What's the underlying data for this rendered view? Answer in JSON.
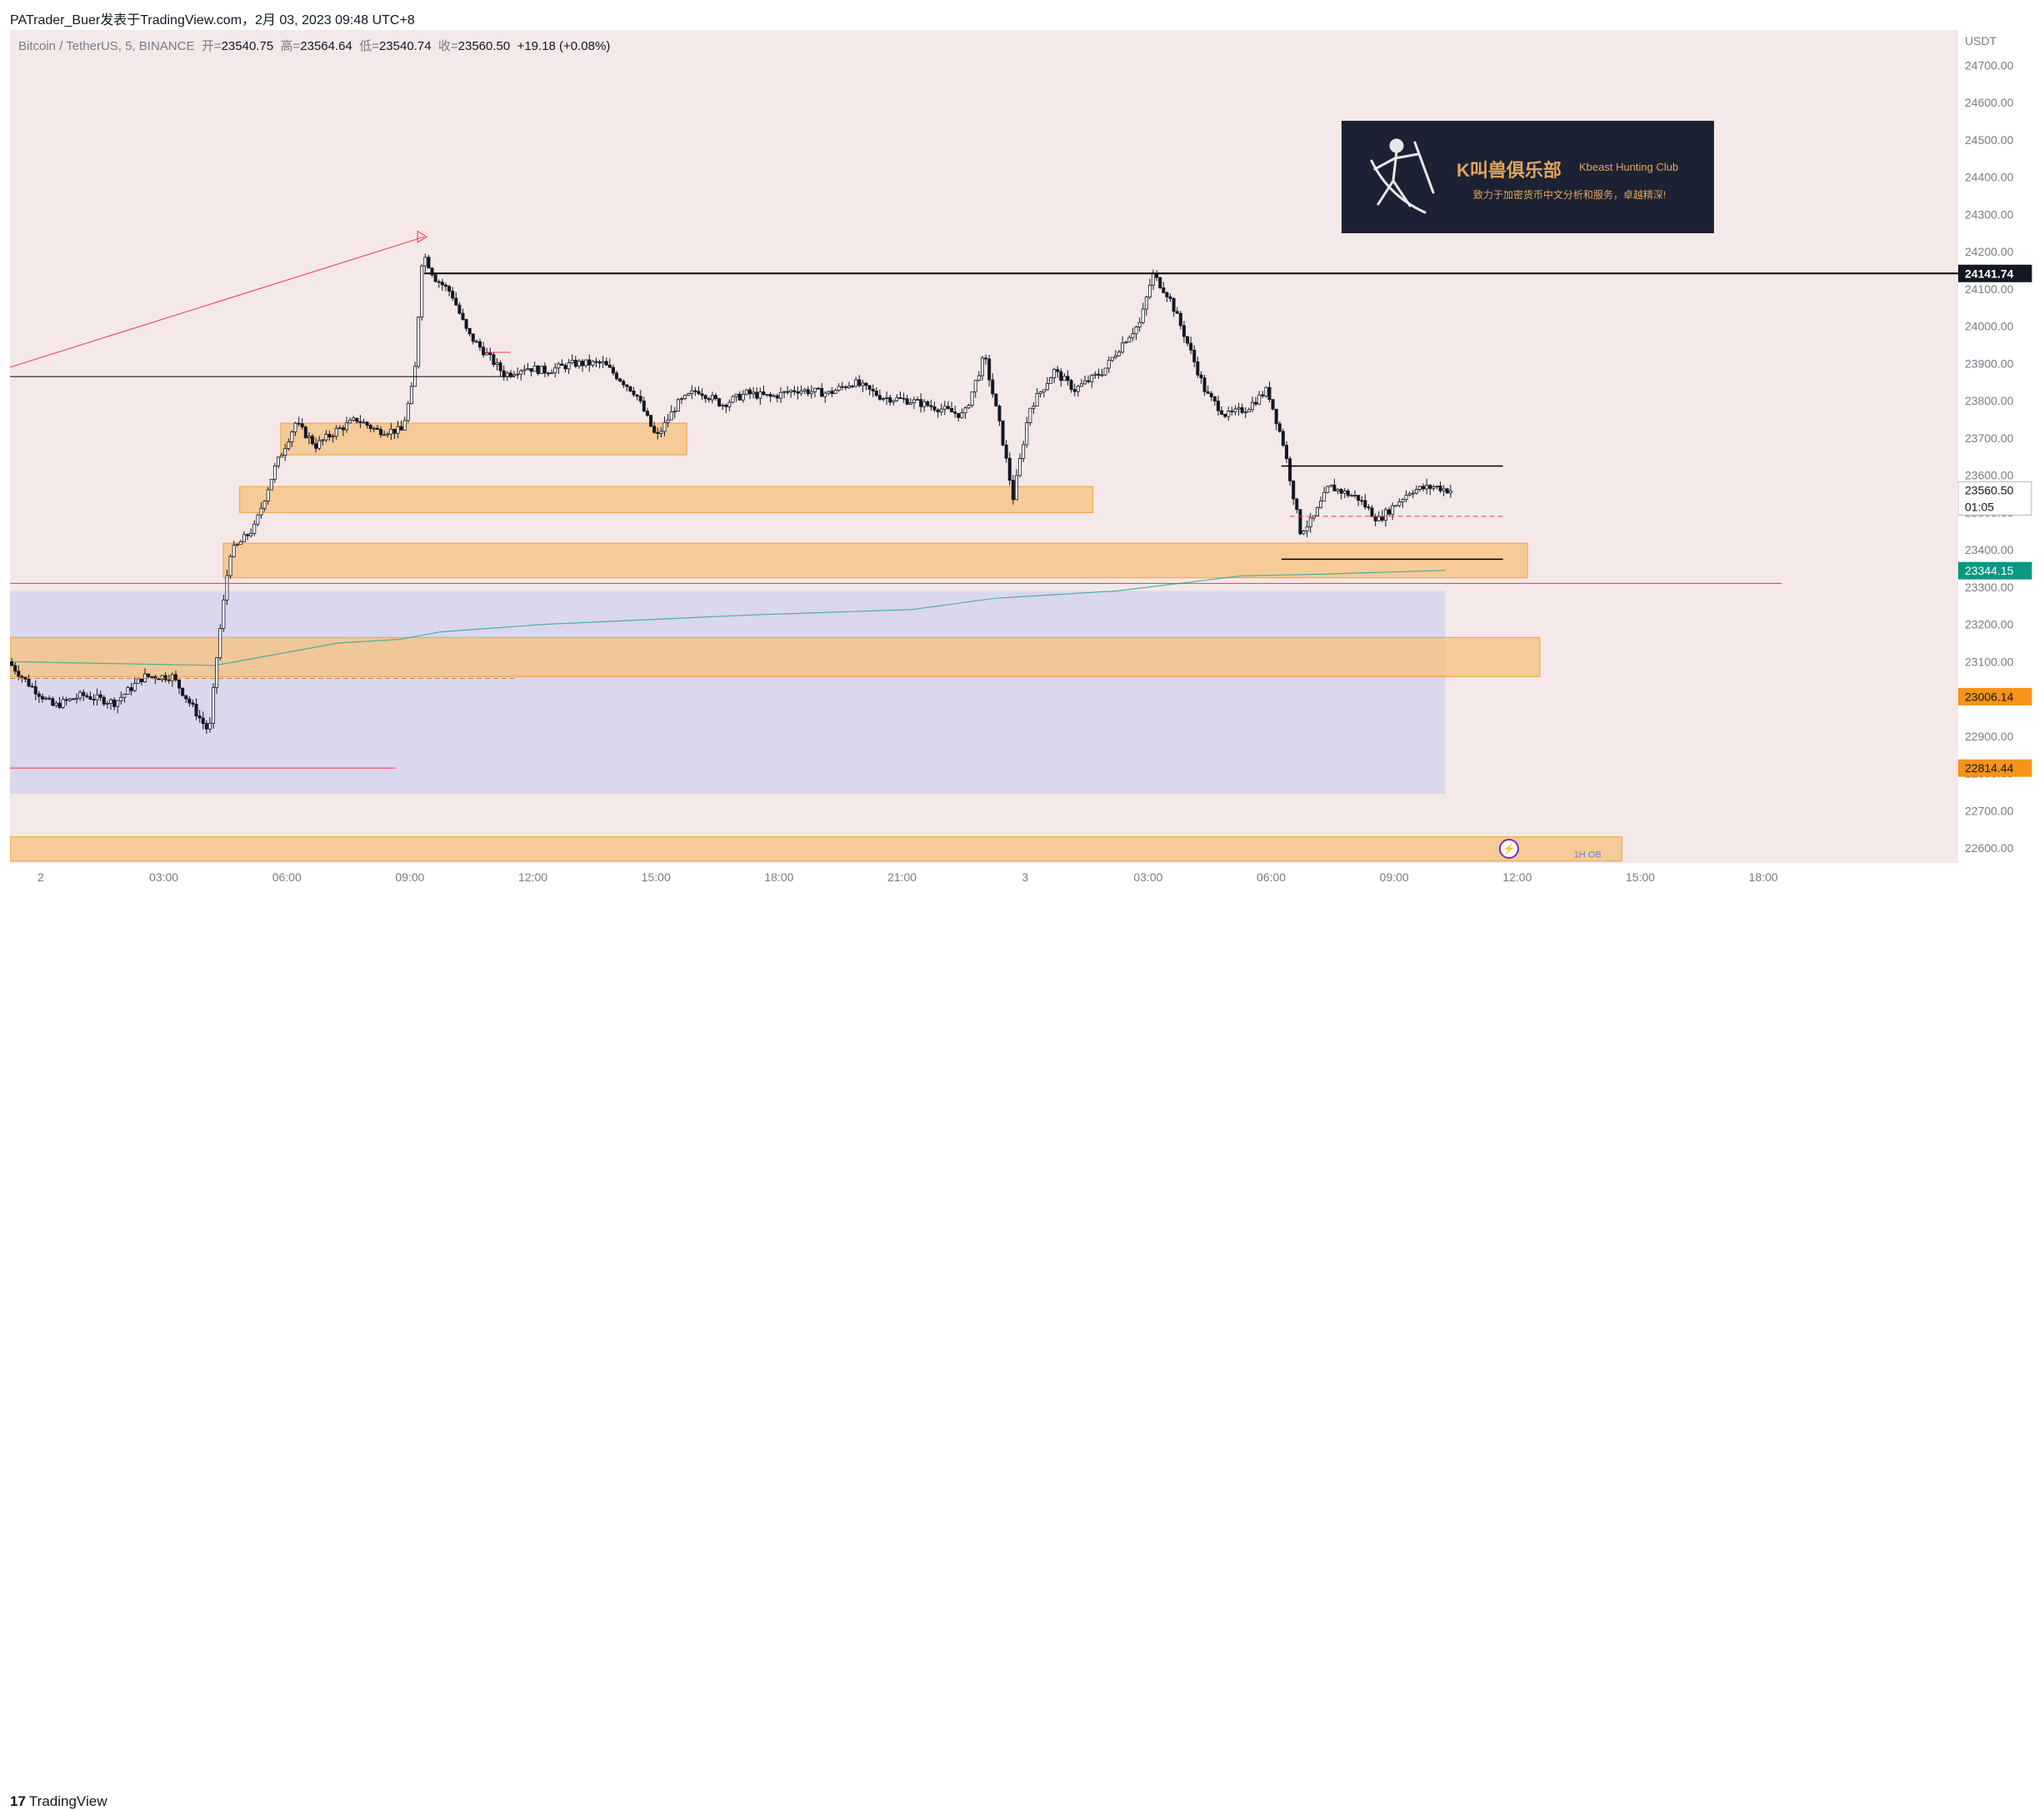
{
  "header": {
    "publisher_line": "PATrader_Buer发表于TradingView.com，2月 03, 2023 09:48 UTC+8"
  },
  "legend": {
    "symbol": "Bitcoin / TetherUS, 5, BINANCE",
    "open_label": "开=",
    "open": "23540.75",
    "high_label": "高=",
    "high": "23564.64",
    "low_label": "低=",
    "low": "23540.74",
    "close_label": "收=",
    "close": "23560.50",
    "change": "+19.18 (+0.08%)"
  },
  "banner": {
    "title": "K叫兽俱乐部",
    "subtitle": "Kbeast Hunting Club",
    "tagline": "致力于加密货币中文分析和服务，卓越精深!"
  },
  "footer": {
    "brand": "TradingView",
    "brand_mark": "17"
  },
  "colors": {
    "background": "#f4e8e9",
    "zone_orange": "#f7c27c",
    "zone_purple": "#d6d3ec",
    "resistance": "#000000",
    "support_red": "#f23645",
    "price_tag_green": "#089981",
    "price_tag_orange": "#f7931a",
    "vwap": "#26a69a"
  },
  "flash_icon": "lightning-icon",
  "chart_data": {
    "type": "candlestick",
    "symbol": "Bitcoin / TetherUS",
    "interval": "5",
    "exchange": "BINANCE",
    "y_unit": "USDT",
    "ylim": [
      22560,
      24795
    ],
    "y_ticks": [
      22600,
      22700,
      22800,
      22900,
      23000,
      23100,
      23200,
      23300,
      23400,
      23500,
      23600,
      23700,
      23800,
      23900,
      24000,
      24100,
      24200,
      24300,
      24400,
      24500,
      24600,
      24700
    ],
    "y_tick_labels": [
      "22600.00",
      "22700.00",
      "22800.00",
      "22900.00",
      "23000.00",
      "23100.00",
      "23200.00",
      "23300.00",
      "23400.00",
      "23500.00",
      "23600.00",
      "23700.00",
      "23800.00",
      "23900.00",
      "24000.00",
      "24100.00",
      "24200.00",
      "24300.00",
      "24400.00",
      "24500.00",
      "24600.00",
      "24700.00"
    ],
    "x_range_hours": [
      0,
      48
    ],
    "x_ticks": [
      {
        "label": "2",
        "h": 0.75
      },
      {
        "label": "03:00",
        "h": 3.75
      },
      {
        "label": "06:00",
        "h": 6.75
      },
      {
        "label": "09:00",
        "h": 9.75
      },
      {
        "label": "12:00",
        "h": 12.75
      },
      {
        "label": "15:00",
        "h": 15.75
      },
      {
        "label": "18:00",
        "h": 18.75
      },
      {
        "label": "21:00",
        "h": 21.75
      },
      {
        "label": "3",
        "h": 24.75
      },
      {
        "label": "03:00",
        "h": 27.75
      },
      {
        "label": "06:00",
        "h": 30.75
      },
      {
        "label": "09:00",
        "h": 33.75
      },
      {
        "label": "12:00",
        "h": 36.75
      },
      {
        "label": "15:00",
        "h": 39.75
      },
      {
        "label": "18:00",
        "h": 42.75
      }
    ],
    "price_path": [
      [
        0.0,
        23100
      ],
      [
        0.5,
        23040
      ],
      [
        1.1,
        22980
      ],
      [
        1.8,
        23010
      ],
      [
        2.6,
        22990
      ],
      [
        3.3,
        23060
      ],
      [
        4.0,
        23060
      ],
      [
        4.6,
        22960
      ],
      [
        4.9,
        22910
      ],
      [
        5.1,
        23130
      ],
      [
        5.4,
        23390
      ],
      [
        6.0,
        23460
      ],
      [
        6.5,
        23620
      ],
      [
        7.0,
        23740
      ],
      [
        7.5,
        23680
      ],
      [
        8.0,
        23720
      ],
      [
        8.5,
        23750
      ],
      [
        9.0,
        23720
      ],
      [
        9.6,
        23720
      ],
      [
        9.9,
        23860
      ],
      [
        10.1,
        24200
      ],
      [
        10.4,
        24130
      ],
      [
        10.8,
        24090
      ],
      [
        11.2,
        23980
      ],
      [
        11.7,
        23920
      ],
      [
        12.1,
        23870
      ],
      [
        12.6,
        23890
      ],
      [
        13.1,
        23880
      ],
      [
        13.8,
        23900
      ],
      [
        14.5,
        23900
      ],
      [
        15.3,
        23820
      ],
      [
        15.8,
        23700
      ],
      [
        16.3,
        23790
      ],
      [
        16.8,
        23830
      ],
      [
        17.4,
        23790
      ],
      [
        18.0,
        23820
      ],
      [
        18.6,
        23810
      ],
      [
        19.2,
        23830
      ],
      [
        20.0,
        23820
      ],
      [
        20.6,
        23850
      ],
      [
        21.3,
        23810
      ],
      [
        22.0,
        23800
      ],
      [
        22.7,
        23780
      ],
      [
        23.3,
        23760
      ],
      [
        23.8,
        23920
      ],
      [
        24.2,
        23720
      ],
      [
        24.5,
        23540
      ],
      [
        24.9,
        23780
      ],
      [
        25.5,
        23880
      ],
      [
        26.0,
        23830
      ],
      [
        26.7,
        23880
      ],
      [
        27.2,
        23960
      ],
      [
        27.6,
        24010
      ],
      [
        27.9,
        24140
      ],
      [
        28.3,
        24080
      ],
      [
        28.7,
        23970
      ],
      [
        29.2,
        23820
      ],
      [
        29.7,
        23760
      ],
      [
        30.2,
        23780
      ],
      [
        30.7,
        23830
      ],
      [
        31.1,
        23680
      ],
      [
        31.5,
        23450
      ],
      [
        31.8,
        23480
      ],
      [
        32.2,
        23570
      ],
      [
        32.9,
        23540
      ],
      [
        33.4,
        23480
      ],
      [
        33.8,
        23520
      ],
      [
        34.2,
        23560
      ],
      [
        34.8,
        23570
      ],
      [
        35.1,
        23560
      ]
    ],
    "highlighted_levels": [
      {
        "price": 24141.74,
        "label": "24141.74",
        "style": "black"
      },
      {
        "price": 23560.5,
        "label": "23560.50",
        "sub_label": "01:05",
        "style": "current"
      },
      {
        "price": 23344.15,
        "label": "23344.15",
        "style": "green"
      },
      {
        "price": 23006.14,
        "label": "23006.14",
        "style": "orange"
      },
      {
        "price": 22814.44,
        "label": "22814.44",
        "style": "orange"
      }
    ],
    "zones": [
      {
        "kind": "orange",
        "h0": 6.6,
        "h1": 16.5,
        "p_low": 23655,
        "p_high": 23740
      },
      {
        "kind": "orange",
        "h0": 5.6,
        "h1": 26.4,
        "p_low": 23500,
        "p_high": 23570
      },
      {
        "kind": "orange",
        "h0": 5.2,
        "h1": 37.0,
        "p_low": 23325,
        "p_high": 23418
      },
      {
        "kind": "purple",
        "h0": 0,
        "h1": 35.0,
        "p_low": 22745,
        "p_high": 23290
      },
      {
        "kind": "orange",
        "h0": 0,
        "h1": 37.3,
        "p_low": 23060,
        "p_high": 23165
      },
      {
        "kind": "orange",
        "h0": 0,
        "h1": 39.3,
        "p_low": 22565,
        "p_high": 22630
      }
    ],
    "lines": [
      {
        "color": "#000000",
        "h0": 10.1,
        "p0": 24141.74,
        "h1": 48,
        "p1": 24141.74,
        "w": 2
      },
      {
        "color": "#000000",
        "h0": 0,
        "p0": 23865,
        "h1": 12.3,
        "p1": 23865,
        "w": 1
      },
      {
        "color": "#f23645",
        "h0": 0,
        "p0": 23890,
        "h1": 10.1,
        "p1": 24240,
        "w": 1
      },
      {
        "color": "#f23645",
        "h0": 11.6,
        "p0": 23930,
        "h1": 12.2,
        "p1": 23930,
        "w": 1
      },
      {
        "color": "#f23645",
        "h0": 0,
        "p0": 23310,
        "h1": 43.2,
        "p1": 23310,
        "w": 1
      },
      {
        "color": "#f23645",
        "h0": 0,
        "p0": 22814.44,
        "h1": 9.4,
        "p1": 22814.44,
        "w": 1
      },
      {
        "color": "#000000",
        "h0": 31.0,
        "p0": 23625,
        "h1": 36.4,
        "p1": 23625,
        "w": 1.5
      },
      {
        "color": "#000000",
        "h0": 31.0,
        "p0": 23375,
        "h1": 36.4,
        "p1": 23375,
        "w": 1.5
      }
    ],
    "vwap": [
      [
        0,
        23100
      ],
      [
        5.0,
        23090
      ],
      [
        8.0,
        23150
      ],
      [
        9.5,
        23160
      ],
      [
        10.5,
        23180
      ],
      [
        13,
        23200
      ],
      [
        18,
        23225
      ],
      [
        22,
        23240
      ],
      [
        24,
        23270
      ],
      [
        27,
        23290
      ],
      [
        28.5,
        23310
      ],
      [
        30,
        23330
      ],
      [
        32,
        23335
      ],
      [
        35,
        23345
      ]
    ],
    "watermark": "1H OB"
  }
}
